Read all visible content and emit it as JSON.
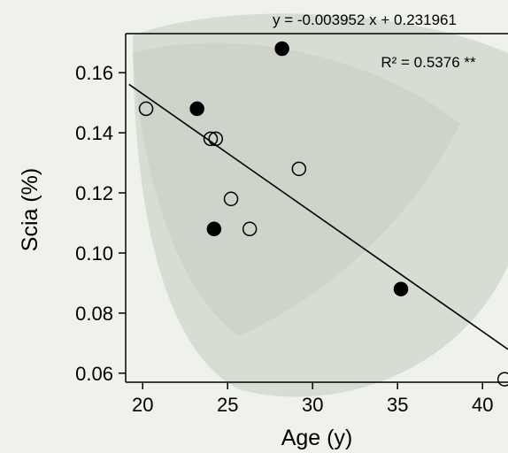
{
  "chart_data": {
    "type": "scatter",
    "title": "",
    "xlabel": "Age (y)",
    "ylabel": "Scia (%)",
    "xlim": [
      19,
      41.5
    ],
    "ylim": [
      0.057,
      0.173
    ],
    "xticks": [
      20,
      25,
      30,
      35,
      40
    ],
    "yticks": [
      0.06,
      0.08,
      0.1,
      0.12,
      0.14,
      0.16
    ],
    "xtick_labels": [
      "20",
      "25",
      "30",
      "35",
      "40"
    ],
    "ytick_labels": [
      "0.06",
      "0.08",
      "0.10",
      "0.12",
      "0.14",
      "0.16"
    ],
    "grid": false,
    "series": [
      {
        "marker": "filled-circle",
        "x": [
          23.2,
          24.2,
          28.2,
          35.2
        ],
        "y": [
          0.148,
          0.108,
          0.168,
          0.088
        ]
      },
      {
        "marker": "open-circle",
        "x": [
          20.2,
          24.0,
          24.3,
          25.2,
          26.3,
          29.2,
          41.3
        ],
        "y": [
          0.148,
          0.138,
          0.138,
          0.118,
          0.108,
          0.128,
          0.058
        ]
      }
    ],
    "trendline": {
      "slope": -0.003952,
      "intercept": 0.231961,
      "equation_label": "y = -0.003952 x + 0.231961",
      "r2_label": "R² = 0.5376 **"
    }
  }
}
